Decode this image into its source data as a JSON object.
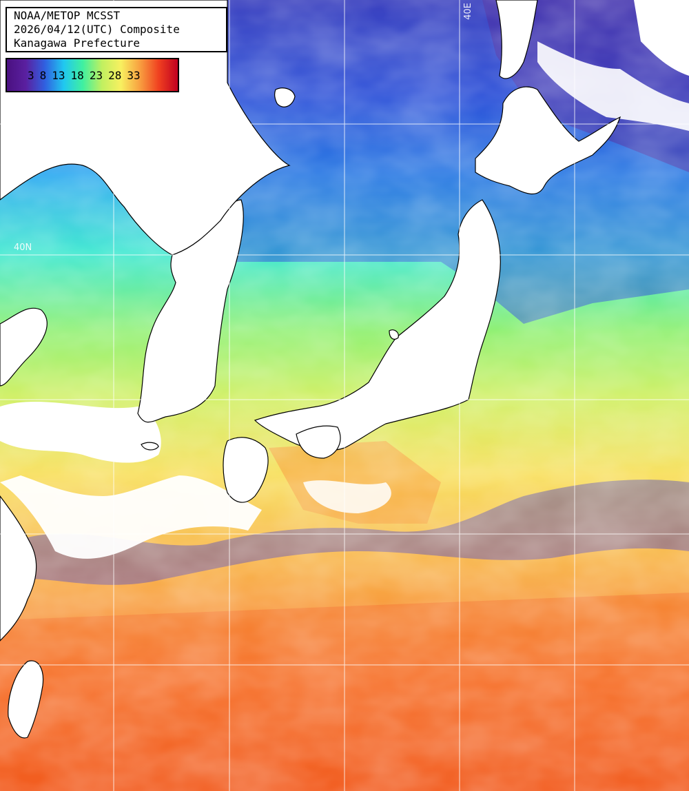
{
  "title": {
    "line1": "NOAA/METOP MCSST",
    "line2": "2026/04/12(UTC) Composite",
    "line3": "Kanagawa Prefecture"
  },
  "legend": {
    "ticks": [
      "3",
      "8",
      "13",
      "18",
      "23",
      "28",
      "33"
    ],
    "gradient": [
      "#4a1080",
      "#5a20a0",
      "#3060e0",
      "#20c8f0",
      "#40f0a0",
      "#c0f060",
      "#f8f060",
      "#f8a040",
      "#f04020",
      "#c00020"
    ]
  },
  "grid_labels": {
    "lat_40": "40N",
    "lon_40": "40E"
  },
  "colors": {
    "land": "#ffffff",
    "coast": "#000000",
    "grid": "#ffffff"
  }
}
